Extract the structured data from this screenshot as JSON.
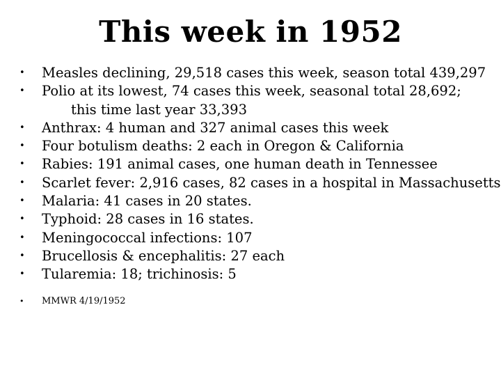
{
  "slide": {
    "title": "This week in 1952",
    "bullets": [
      "Measles declining, 29,518 cases this week, season total 439,297",
      "Polio at its lowest, 74 cases this week, seasonal total 28,692;",
      "Anthrax: 4 human and 327 animal cases this week",
      "Four botulism deaths: 2 each in Oregon & California",
      "Rabies: 191 animal cases, one human death in Tennessee",
      "Scarlet fever: 2,916 cases, 82 cases in a hospital in Massachusetts",
      "Malaria: 41 cases in 20 states.",
      "Typhoid: 28 cases in 16 states.",
      "Meningococcal infections: 107",
      "Brucellosis & encephalitis: 27 each",
      "Tularemia: 18; trichinosis: 5"
    ],
    "polio_continuation": "this time last year 33,393",
    "source": "MMWR 4/19/1952",
    "bullet_symbol": "•"
  }
}
